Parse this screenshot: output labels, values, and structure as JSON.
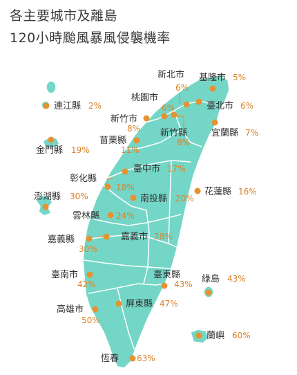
{
  "title": {
    "line1": "各主要城市及離島",
    "line2": "120小時颱風暴風侵襲機率"
  },
  "colors": {
    "land": "#74d6c6",
    "dot": "#e69230",
    "percent": "#d9832a",
    "text": "#333333"
  },
  "regions": [
    {
      "id": "new-taipei",
      "name": "新北市",
      "percent": "6%"
    },
    {
      "id": "keelung",
      "name": "基隆市",
      "percent": "5%"
    },
    {
      "id": "taoyuan",
      "name": "桃園市",
      "percent": "6%"
    },
    {
      "id": "taipei",
      "name": "臺北市",
      "percent": "6%"
    },
    {
      "id": "lienchiang",
      "name": "連江縣",
      "percent": "2%"
    },
    {
      "id": "hsinchu-city",
      "name": "新竹市",
      "percent": "8%"
    },
    {
      "id": "hsinchu-county",
      "name": "新竹縣",
      "percent": "8%"
    },
    {
      "id": "yilan",
      "name": "宜蘭縣",
      "percent": "7%"
    },
    {
      "id": "kinmen",
      "name": "金門縣",
      "percent": "19%"
    },
    {
      "id": "miaoli",
      "name": "苗栗縣",
      "percent": "11%"
    },
    {
      "id": "taichung",
      "name": "臺中市",
      "percent": "17%"
    },
    {
      "id": "changhua",
      "name": "彰化縣",
      "percent": "18%"
    },
    {
      "id": "hualien",
      "name": "花蓮縣",
      "percent": "16%"
    },
    {
      "id": "penghu",
      "name": "澎湖縣",
      "percent": "30%"
    },
    {
      "id": "nantou",
      "name": "南投縣",
      "percent": "20%"
    },
    {
      "id": "yunlin",
      "name": "雲林縣",
      "percent": "24%"
    },
    {
      "id": "chiayi-county",
      "name": "嘉義縣",
      "percent": "30%"
    },
    {
      "id": "chiayi-city",
      "name": "嘉義市",
      "percent": "28%"
    },
    {
      "id": "tainan",
      "name": "臺南市",
      "percent": "42%"
    },
    {
      "id": "taitung",
      "name": "臺東縣",
      "percent": "43%"
    },
    {
      "id": "green-island",
      "name": "綠島",
      "percent": "43%"
    },
    {
      "id": "kaohsiung",
      "name": "高雄市",
      "percent": "50%"
    },
    {
      "id": "pingtung",
      "name": "屏東縣",
      "percent": "47%"
    },
    {
      "id": "orchid-island",
      "name": "蘭嶼",
      "percent": "60%"
    },
    {
      "id": "hengchun",
      "name": "恆春",
      "percent": "63%"
    }
  ]
}
